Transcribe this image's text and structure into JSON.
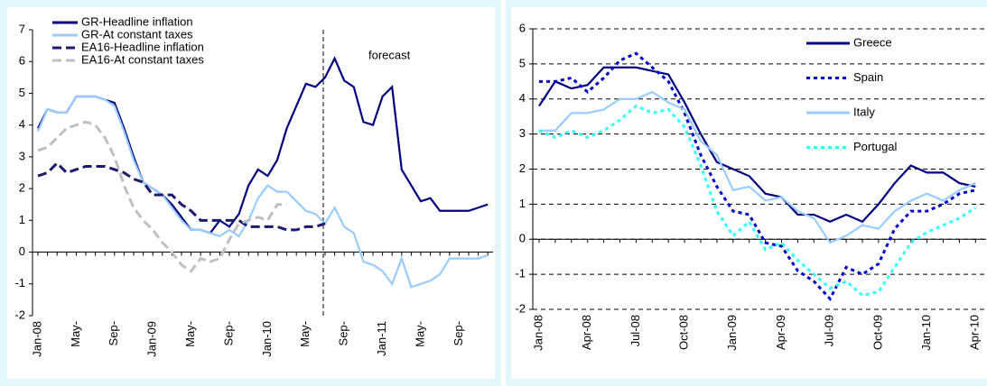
{
  "chart_data": [
    {
      "type": "line",
      "categories": [
        "Jan-08",
        null,
        null,
        null,
        "May-",
        null,
        null,
        null,
        "Sep-",
        null,
        null,
        null,
        "Jan-09",
        null,
        null,
        null,
        "May-",
        null,
        null,
        null,
        "Sep-",
        null,
        null,
        null,
        "Jan-10",
        null,
        null,
        null,
        "May-",
        null,
        null,
        null,
        "Sep-",
        null,
        null,
        null,
        "Jan-11",
        null,
        null,
        null,
        "May-",
        null,
        null,
        null,
        "Sep-",
        null,
        null,
        null
      ],
      "series": [
        {
          "name": "GR-Headline inflation",
          "color": "#000080",
          "style": "solid",
          "values": [
            3.9,
            4.5,
            4.4,
            4.4,
            4.9,
            4.9,
            4.9,
            4.8,
            4.7,
            3.9,
            3.0,
            2.2,
            2.0,
            1.8,
            1.5,
            1.1,
            0.7,
            0.7,
            0.6,
            1.0,
            0.8,
            1.2,
            2.1,
            2.6,
            2.4,
            2.9,
            3.9,
            4.6,
            5.3,
            5.2,
            5.5,
            6.1,
            5.4,
            5.2,
            4.1,
            4.0,
            4.9,
            5.2,
            2.6,
            2.1,
            1.6,
            1.7,
            1.3,
            1.3,
            1.3,
            1.3,
            1.4,
            1.5
          ]
        },
        {
          "name": "GR-At constant taxes",
          "color": "#99ccff",
          "style": "solid",
          "values": [
            3.8,
            4.5,
            4.4,
            4.4,
            4.9,
            4.9,
            4.9,
            4.8,
            4.6,
            3.8,
            2.9,
            2.2,
            2.0,
            1.8,
            1.4,
            1.0,
            0.7,
            0.7,
            0.6,
            0.5,
            0.7,
            0.5,
            1.0,
            1.7,
            2.1,
            1.9,
            1.9,
            1.6,
            1.3,
            1.2,
            0.9,
            1.4,
            0.8,
            0.6,
            -0.3,
            -0.4,
            -0.6,
            -1.0,
            -0.2,
            -1.1,
            -1.0,
            -0.9,
            -0.7,
            -0.2,
            -0.2,
            -0.2,
            -0.2,
            -0.1
          ]
        },
        {
          "name": "EA16-Headline inflation",
          "color": "#1a1a6e",
          "style": "dashed",
          "values": [
            2.4,
            2.5,
            2.8,
            2.5,
            2.6,
            2.7,
            2.7,
            2.7,
            2.6,
            2.5,
            2.3,
            2.2,
            1.8,
            1.8,
            1.8,
            1.5,
            1.3,
            1.0,
            1.0,
            1.0,
            1.0,
            1.0,
            0.8,
            0.8,
            0.8,
            0.8,
            0.7,
            0.7,
            0.8,
            0.8,
            0.9,
            null,
            null,
            null,
            null,
            null,
            null,
            null,
            null,
            null,
            null,
            null,
            null,
            null,
            null,
            null,
            null,
            null
          ]
        },
        {
          "name": "EA16-At constant taxes",
          "color": "#c0c0c0",
          "style": "dashed",
          "values": [
            3.2,
            3.3,
            3.6,
            3.9,
            4.0,
            4.1,
            4.0,
            3.6,
            3.0,
            2.1,
            1.4,
            1.0,
            0.7,
            0.3,
            0.0,
            -0.4,
            -0.6,
            -0.2,
            -0.3,
            -0.2,
            0.4,
            0.9,
            1.0,
            1.1,
            1.0,
            1.5,
            1.5,
            null,
            null,
            null,
            null,
            null,
            null,
            null,
            null,
            null,
            null,
            null,
            null,
            null,
            null,
            null,
            null,
            null,
            null,
            null,
            null,
            null
          ]
        }
      ],
      "annotation": "forecast",
      "ylim": [
        -2,
        7
      ],
      "yticks": [
        -2,
        -1,
        0,
        1,
        2,
        3,
        4,
        5,
        6,
        7
      ],
      "grid": false
    },
    {
      "type": "line",
      "categories": [
        "Jan-08",
        null,
        null,
        "Apr-08",
        null,
        null,
        "Jul-08",
        null,
        null,
        "Oct-08",
        null,
        null,
        "Jan-09",
        null,
        null,
        "Apr-09",
        null,
        null,
        "Jul-09",
        null,
        null,
        "Oct-09",
        null,
        null,
        "Jan-10",
        null,
        null,
        "Apr-10"
      ],
      "series": [
        {
          "name": "Greece",
          "color": "#000080",
          "style": "solid",
          "values": [
            3.8,
            4.5,
            4.3,
            4.4,
            4.9,
            4.9,
            4.9,
            4.8,
            4.7,
            3.9,
            3.0,
            2.2,
            2.0,
            1.8,
            1.3,
            1.2,
            0.7,
            0.7,
            0.5,
            0.7,
            0.5,
            1.0,
            1.6,
            2.1,
            1.9,
            1.9,
            1.6,
            1.5
          ]
        },
        {
          "name": "Spain",
          "color": "#0000cc",
          "style": "dotted",
          "values": [
            4.5,
            4.5,
            4.6,
            4.2,
            4.6,
            5.1,
            5.3,
            4.9,
            4.5,
            3.6,
            2.4,
            1.5,
            0.8,
            0.7,
            -0.1,
            -0.2,
            -0.9,
            -1.2,
            -1.7,
            -0.8,
            -1.0,
            -0.7,
            0.3,
            0.8,
            0.8,
            1.0,
            1.3,
            1.4
          ]
        },
        {
          "name": "Italy",
          "color": "#99ccff",
          "style": "solid",
          "values": [
            3.1,
            3.1,
            3.6,
            3.6,
            3.7,
            4.0,
            4.0,
            4.2,
            3.9,
            3.7,
            2.8,
            2.4,
            1.4,
            1.5,
            1.1,
            1.2,
            0.8,
            0.6,
            -0.1,
            0.1,
            0.4,
            0.3,
            0.8,
            1.1,
            1.3,
            1.1,
            1.4,
            1.6
          ]
        },
        {
          "name": "Portugal",
          "color": "#33ffff",
          "style": "dotted",
          "values": [
            3.1,
            2.9,
            3.1,
            2.9,
            3.1,
            3.4,
            3.8,
            3.6,
            3.7,
            3.2,
            2.1,
            0.8,
            0.1,
            0.5,
            -0.3,
            -0.1,
            -0.6,
            -1.0,
            -1.4,
            -1.2,
            -1.6,
            -1.5,
            -0.8,
            -0.1,
            0.2,
            0.4,
            0.6,
            0.9
          ]
        }
      ],
      "ylim": [
        -2,
        6
      ],
      "yticks": [
        -2,
        -1,
        0,
        1,
        2,
        3,
        4,
        5,
        6
      ],
      "grid": true
    }
  ]
}
